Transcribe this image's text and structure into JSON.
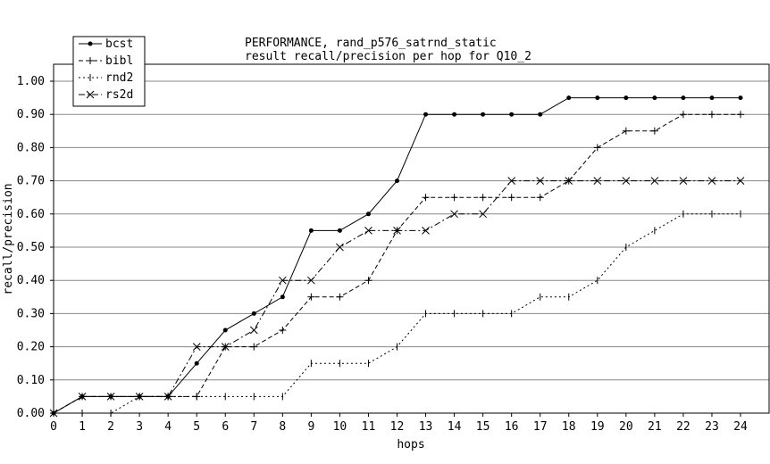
{
  "chart_data": {
    "type": "line",
    "title": "PERFORMANCE, rand_p576_satrnd_static",
    "subtitle": "result recall/precision per hop for Q10_2",
    "xlabel": "hops",
    "ylabel": "recall/precision",
    "xlim": [
      0,
      24
    ],
    "ylim": [
      0,
      1.0
    ],
    "x_ticks": [
      "0",
      "1",
      "2",
      "3",
      "4",
      "5",
      "6",
      "7",
      "8",
      "9",
      "10",
      "11",
      "12",
      "13",
      "14",
      "15",
      "16",
      "17",
      "18",
      "19",
      "20",
      "21",
      "22",
      "23",
      "24"
    ],
    "y_ticks": [
      "0.00",
      "0.10",
      "0.20",
      "0.30",
      "0.40",
      "0.50",
      "0.60",
      "0.70",
      "0.80",
      "0.90",
      "1.00"
    ],
    "grid": "horizontal",
    "legend_position": "top-left",
    "x": [
      0,
      1,
      2,
      3,
      4,
      5,
      6,
      7,
      8,
      9,
      10,
      11,
      12,
      13,
      14,
      15,
      16,
      17,
      18,
      19,
      20,
      21,
      22,
      23,
      24
    ],
    "series": [
      {
        "name": "bcst",
        "style": "solid",
        "marker": "dot",
        "values": [
          0,
          0.05,
          0.05,
          0.05,
          0.05,
          0.15,
          0.25,
          0.3,
          0.35,
          0.55,
          0.55,
          0.6,
          0.7,
          0.9,
          0.9,
          0.9,
          0.9,
          0.9,
          0.95,
          0.95,
          0.95,
          0.95,
          0.95,
          0.95,
          0.95
        ]
      },
      {
        "name": "bibl",
        "style": "dashed",
        "marker": "plus",
        "values": [
          0,
          0.05,
          0.05,
          0.05,
          0.05,
          0.05,
          0.2,
          0.2,
          0.25,
          0.35,
          0.35,
          0.4,
          0.55,
          0.65,
          0.65,
          0.65,
          0.65,
          0.65,
          0.7,
          0.8,
          0.85,
          0.85,
          0.9,
          0.9,
          0.9
        ]
      },
      {
        "name": "rnd2",
        "style": "dotted",
        "marker": "vtick",
        "values": [
          0,
          0,
          0,
          0.05,
          0.05,
          0.05,
          0.05,
          0.05,
          0.05,
          0.15,
          0.15,
          0.15,
          0.2,
          0.3,
          0.3,
          0.3,
          0.3,
          0.35,
          0.35,
          0.4,
          0.5,
          0.55,
          0.6,
          0.6,
          0.6
        ]
      },
      {
        "name": "rs2d",
        "style": "dashdot",
        "marker": "x",
        "values": [
          0,
          0.05,
          0.05,
          0.05,
          0.05,
          0.2,
          0.2,
          0.25,
          0.4,
          0.4,
          0.5,
          0.55,
          0.55,
          0.55,
          0.6,
          0.6,
          0.7,
          0.7,
          0.7,
          0.7,
          0.7,
          0.7,
          0.7,
          0.7,
          0.7
        ]
      }
    ]
  }
}
